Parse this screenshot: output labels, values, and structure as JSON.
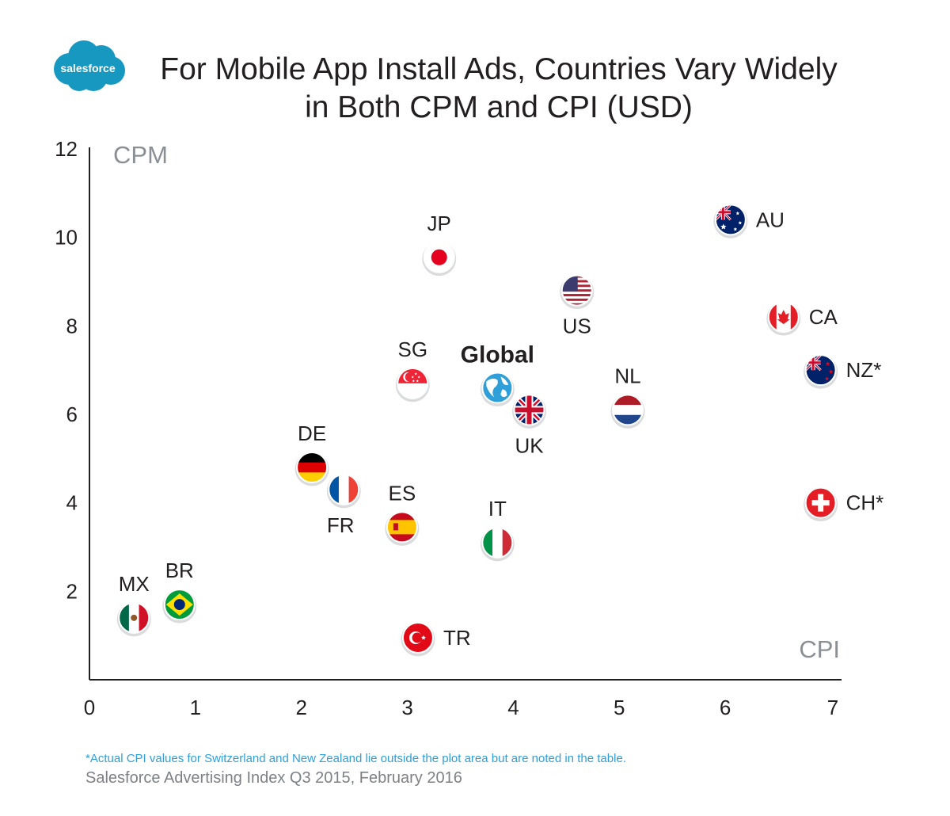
{
  "logo": {
    "text": "salesforce",
    "color": "#1798c1"
  },
  "title": {
    "line1": "For Mobile App Install Ads, Countries Vary Widely",
    "line2": "in Both CPM and CPI (USD)"
  },
  "footnote": "*Actual CPI values for Switzerland and New Zealand lie outside the plot area but are noted in the table.",
  "source": "Salesforce Advertising Index Q3 2015, February 2016",
  "chart_data": {
    "type": "scatter",
    "title": "For Mobile App Install Ads, Countries Vary Widely in Both CPM and CPI (USD)",
    "xlabel": "CPI",
    "ylabel": "CPM",
    "xlim": [
      0,
      7
    ],
    "ylim": [
      0,
      12
    ],
    "xticks": [
      "0",
      "1",
      "2",
      "3",
      "4",
      "5",
      "6",
      "7"
    ],
    "yticks": [
      "2",
      "4",
      "6",
      "8",
      "10",
      "12"
    ],
    "grid": false,
    "points": [
      {
        "label": "AU",
        "x": 6.05,
        "y": 10.4,
        "flag": "australia-flag-icon",
        "label_pos": "right",
        "colors": [
          "#012169",
          "#ffffff",
          "#c8102e"
        ]
      },
      {
        "label": "JP",
        "x": 3.3,
        "y": 9.55,
        "flag": "japan-flag-icon",
        "label_pos": "top",
        "colors": [
          "#ffffff",
          "#e6001f"
        ]
      },
      {
        "label": "US",
        "x": 4.6,
        "y": 8.8,
        "flag": "usa-flag-icon",
        "label_pos": "bottom",
        "colors": [
          "#b22234",
          "#ffffff",
          "#3c3b6e"
        ]
      },
      {
        "label": "CA",
        "x": 6.55,
        "y": 8.2,
        "flag": "canada-flag-icon",
        "label_pos": "right",
        "colors": [
          "#e41e26",
          "#ffffff"
        ]
      },
      {
        "label": "NZ*",
        "x": 6.9,
        "y": 7.0,
        "flag": "new-zealand-flag-icon",
        "label_pos": "right",
        "colors": [
          "#012169",
          "#ffffff",
          "#c8102e"
        ]
      },
      {
        "label": "SG",
        "x": 3.05,
        "y": 6.7,
        "flag": "singapore-flag-icon",
        "label_pos": "top",
        "colors": [
          "#ee2536",
          "#ffffff"
        ]
      },
      {
        "label": "Global",
        "x": 3.85,
        "y": 6.6,
        "flag": "globe-icon",
        "label_pos": "top-bold",
        "colors": [
          "#2e9fd9",
          "#ffffff"
        ]
      },
      {
        "label": "UK",
        "x": 4.15,
        "y": 6.1,
        "flag": "uk-flag-icon",
        "label_pos": "bottom",
        "colors": [
          "#012169",
          "#ffffff",
          "#c8102e"
        ]
      },
      {
        "label": "NL",
        "x": 5.08,
        "y": 6.1,
        "flag": "netherlands-flag-icon",
        "label_pos": "top",
        "colors": [
          "#ae1c28",
          "#ffffff",
          "#21468b"
        ]
      },
      {
        "label": "DE",
        "x": 2.1,
        "y": 4.8,
        "flag": "germany-flag-icon",
        "label_pos": "top",
        "colors": [
          "#000000",
          "#dd0000",
          "#ffce00"
        ]
      },
      {
        "label": "FR",
        "x": 2.4,
        "y": 4.3,
        "flag": "france-flag-icon",
        "label_pos": "bottom-left",
        "colors": [
          "#0055a4",
          "#ffffff",
          "#ef4135"
        ]
      },
      {
        "label": "ES",
        "x": 2.95,
        "y": 3.45,
        "flag": "spain-flag-icon",
        "label_pos": "top",
        "colors": [
          "#c60b1e",
          "#ffc400"
        ]
      },
      {
        "label": "IT",
        "x": 3.85,
        "y": 3.1,
        "flag": "italy-flag-icon",
        "label_pos": "top",
        "colors": [
          "#009246",
          "#ffffff",
          "#ce2b37"
        ]
      },
      {
        "label": "CH*",
        "x": 6.9,
        "y": 4.0,
        "flag": "switzerland-flag-icon",
        "label_pos": "right",
        "colors": [
          "#e41e26",
          "#ffffff"
        ]
      },
      {
        "label": "BR",
        "x": 0.85,
        "y": 1.7,
        "flag": "brazil-flag-icon",
        "label_pos": "top",
        "colors": [
          "#009c3b",
          "#ffdf00",
          "#002776"
        ]
      },
      {
        "label": "MX",
        "x": 0.42,
        "y": 1.4,
        "flag": "mexico-flag-icon",
        "label_pos": "top",
        "colors": [
          "#006847",
          "#ffffff",
          "#ce1126"
        ]
      },
      {
        "label": "TR",
        "x": 3.1,
        "y": 0.95,
        "flag": "turkey-flag-icon",
        "label_pos": "right",
        "colors": [
          "#e30a17",
          "#ffffff"
        ]
      }
    ]
  }
}
